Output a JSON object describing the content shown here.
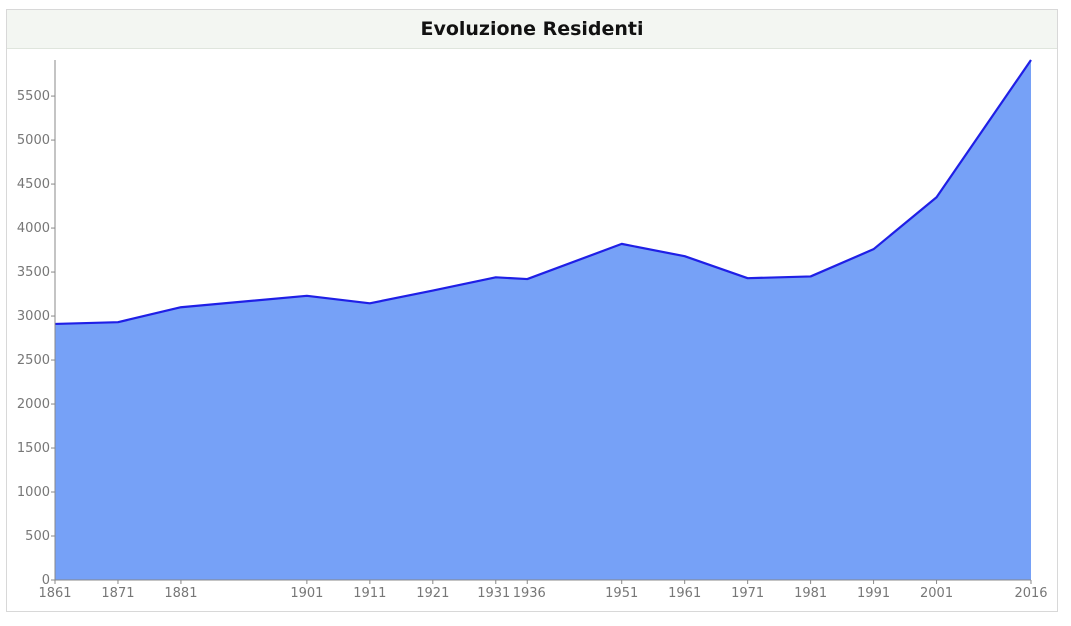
{
  "title": "Evoluzione Residenti",
  "chart_data": {
    "type": "area",
    "title": "Evoluzione Residenti",
    "xlabel": "",
    "ylabel": "",
    "x": [
      1861,
      1871,
      1881,
      1901,
      1911,
      1921,
      1931,
      1936,
      1951,
      1961,
      1971,
      1981,
      1991,
      2001,
      2016
    ],
    "x_tick_labels": [
      "1861",
      "1871",
      "1881",
      "1901",
      "1911",
      "1921",
      "1931",
      "1936",
      "1951",
      "1961",
      "1971",
      "1981",
      "1991",
      "2001",
      "2016"
    ],
    "series": [
      {
        "values": [
          2910,
          2930,
          3100,
          3230,
          3145,
          3290,
          3440,
          3420,
          3820,
          3680,
          3430,
          3450,
          3760,
          4350,
          5910
        ],
        "x": [
          1861,
          1871,
          1881,
          1901,
          1911,
          1921,
          1931,
          1936,
          1951,
          1961,
          1971,
          1981,
          1991,
          2001,
          2016
        ]
      }
    ],
    "y_ticks": [
      0,
      500,
      1000,
      1500,
      2000,
      2500,
      3000,
      3500,
      4000,
      4500,
      5000,
      5500
    ],
    "ylim": [
      0,
      5910
    ],
    "xlim": [
      1861,
      2016
    ],
    "grid": false,
    "legend": "none",
    "fill_color": "#76a1f7",
    "line_color": "#1f1fe6"
  }
}
